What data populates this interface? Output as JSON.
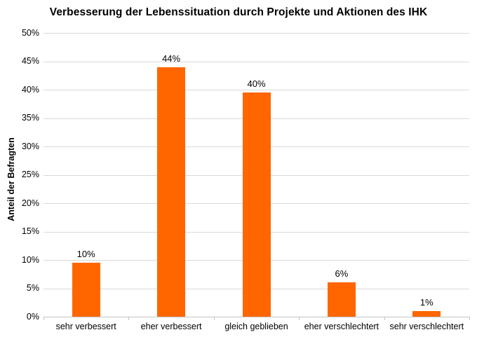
{
  "chart_data": {
    "type": "bar",
    "title": "Verbesserung der Lebenssituation durch Projekte und Aktionen des IHK",
    "xlabel": "",
    "ylabel": "Anteil der Befragten",
    "categories": [
      "sehr verbessert",
      "eher verbessert",
      "gleich geblieben",
      "eher verschlechtert",
      "sehr verschlechtert"
    ],
    "values": [
      10,
      44,
      40,
      6,
      1
    ],
    "value_labels": [
      "10%",
      "44%",
      "40%",
      "6%",
      "1%"
    ],
    "drawn_values": [
      9.5,
      44,
      39.5,
      6,
      1
    ],
    "ylim": [
      0,
      50
    ],
    "y_tick_step": 5,
    "y_tick_labels": [
      "0%",
      "5%",
      "10%",
      "15%",
      "20%",
      "25%",
      "30%",
      "35%",
      "40%",
      "45%",
      "50%"
    ],
    "grid": "horizontal",
    "legend": "none",
    "colors": {
      "bar": "#FF6600",
      "gridline": "#D9D9D9",
      "axis": "#C3C3C3",
      "text": "#000000",
      "background": "#FFFFFF"
    }
  }
}
